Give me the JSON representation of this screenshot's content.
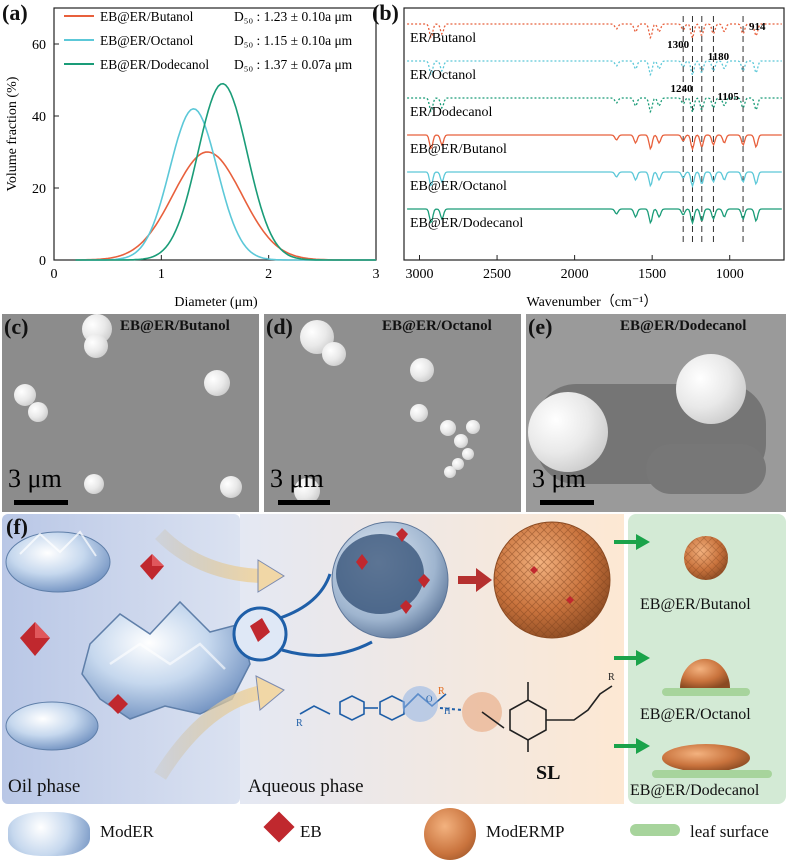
{
  "panels": {
    "a": "(a)",
    "b": "(b)",
    "c": "(c)",
    "d": "(d)",
    "e": "(e)",
    "f": "(f)"
  },
  "chart_data": [
    {
      "type": "line",
      "ylabel": "Volume fraction (%)",
      "xlabel": "Diameter (μm)",
      "xlim": [
        0,
        3
      ],
      "ylim": [
        0,
        70
      ],
      "xticks": [
        "0",
        "1",
        "2",
        "3"
      ],
      "yticks": [
        "0",
        "20",
        "40",
        "60"
      ],
      "series": [
        {
          "name": "EB@ER/Butanol",
          "d50": "D₅₀ : 1.23 ± 0.10a μm",
          "color": "#e8603c",
          "mu": 1.43,
          "sigma": 0.32,
          "peak": 30
        },
        {
          "name": "EB@ER/Octanol",
          "d50": "D₅₀ : 1.15 ± 0.10a μm",
          "color": "#5cc8d8",
          "mu": 1.3,
          "sigma": 0.22,
          "peak": 42
        },
        {
          "name": "EB@ER/Dodecanol",
          "d50": "D₅₀ : 1.37 ± 0.07a μm",
          "color": "#1a9c78",
          "mu": 1.57,
          "sigma": 0.23,
          "peak": 49
        }
      ]
    },
    {
      "type": "line",
      "xlabel": "Wavenumber（cm⁻¹）",
      "xlim": [
        3100,
        650
      ],
      "xticks": [
        "3000",
        "2500",
        "2000",
        "1500",
        "1000"
      ],
      "spectra": [
        {
          "name": "ER/Butanol",
          "color": "#e8603c",
          "style": "dotted"
        },
        {
          "name": "ER/Octanol",
          "color": "#5cc8d8",
          "style": "dotted"
        },
        {
          "name": "ER/Dodecanol",
          "color": "#1a9c78",
          "style": "dotted"
        },
        {
          "name": "EB@ER/Butanol",
          "color": "#e8603c",
          "style": "solid"
        },
        {
          "name": "EB@ER/Octanol",
          "color": "#5cc8d8",
          "style": "solid"
        },
        {
          "name": "EB@ER/Dodecanol",
          "color": "#1a9c78",
          "style": "solid"
        }
      ],
      "reference_lines": [
        1300,
        1240,
        1180,
        1105,
        914
      ],
      "annotations": [
        "1300",
        "1240",
        "1180",
        "1105",
        "914"
      ]
    }
  ],
  "sem": {
    "c": {
      "title": "EB@ER/Butanol",
      "scale": "3 μm"
    },
    "d": {
      "title": "EB@ER/Octanol",
      "scale": "3 μm"
    },
    "e": {
      "title": "EB@ER/Dodecanol",
      "scale": "3 μm"
    }
  },
  "scheme": {
    "oil_phase": "Oil phase",
    "aqueous_phase": "Aqueous phase",
    "sl": "SL",
    "results": [
      "EB@ER/Butanol",
      "EB@ER/Octanol",
      "EB@ER/Dodecanol"
    ],
    "molecule_letters": {
      "r1": "R",
      "r2": "R",
      "r3": "R",
      "o": "O",
      "h": "H"
    },
    "legend": [
      {
        "icon": "modeer-icon",
        "label": "ModER"
      },
      {
        "icon": "eb-icon",
        "label": "EB"
      },
      {
        "icon": "modermp-icon",
        "label": "ModERMP"
      },
      {
        "icon": "leaf-surface-icon",
        "label": "leaf surface"
      }
    ],
    "colors": {
      "oil_bg": "#c8d4ec",
      "aqueous_bg": "#fbe6d2",
      "result_bg": "#d4ebd6",
      "leaf": "#a7d49c",
      "eb": "#c0282e",
      "sphere": "#c9733d",
      "arrow_green": "#1aa34a"
    }
  }
}
